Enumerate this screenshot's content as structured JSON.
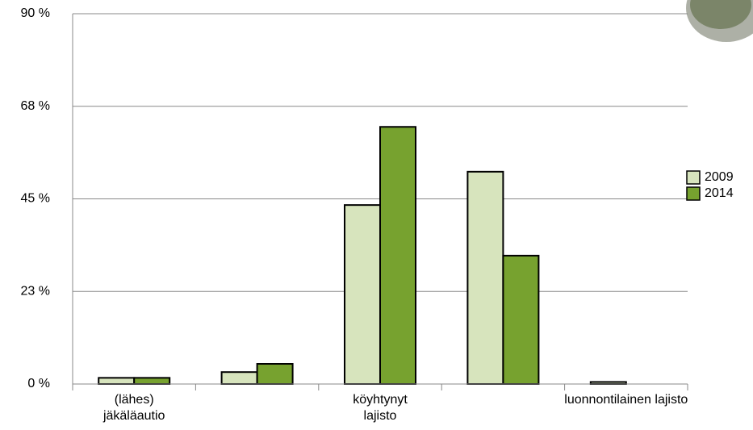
{
  "chart_data": {
    "type": "bar",
    "categories": [
      "(lähes) jäkäläautio",
      null,
      "köyhtynyt lajisto",
      null,
      "luonnontilainen lajisto"
    ],
    "series": [
      {
        "name": "2009",
        "color": "#d7e4bd",
        "values": [
          1.5,
          2.9,
          43.5,
          51.6,
          0.5
        ]
      },
      {
        "name": "2014",
        "color": "#77a22f",
        "values": [
          1.5,
          4.9,
          62.5,
          31.2,
          0
        ]
      }
    ],
    "ylim": [
      0,
      90
    ],
    "yticks": [
      {
        "value": 0,
        "label": "0 %"
      },
      {
        "value": 22.5,
        "label": "23 %"
      },
      {
        "value": 45,
        "label": "45 %"
      },
      {
        "value": 67.5,
        "label": "68 %"
      },
      {
        "value": 90,
        "label": "90 %"
      }
    ],
    "grid": true,
    "legend": "right"
  }
}
